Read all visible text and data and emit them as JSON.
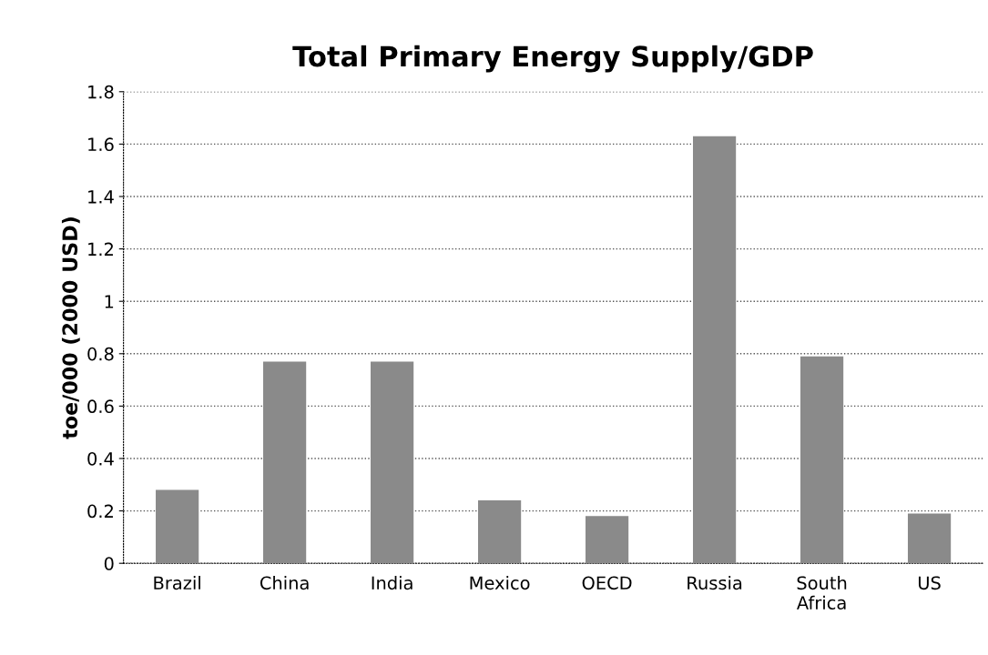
{
  "chart_data": {
    "type": "bar",
    "title": "Total Primary Energy Supply/GDP",
    "ylabel": "toe/000 (2000 USD)",
    "categories": [
      "Brazil",
      "China",
      "India",
      "Mexico",
      "OECD",
      "Russia",
      "South\nAfrica",
      "US"
    ],
    "values": [
      0.28,
      0.77,
      0.77,
      0.24,
      0.18,
      1.63,
      0.79,
      0.19
    ],
    "color": "#8a8a8a",
    "ylim": [
      0,
      1.8
    ],
    "yticks": [
      0,
      0.2,
      0.4,
      0.6,
      0.8,
      1,
      1.2,
      1.4,
      1.6,
      1.8
    ],
    "grid": "y",
    "legend": false
  }
}
